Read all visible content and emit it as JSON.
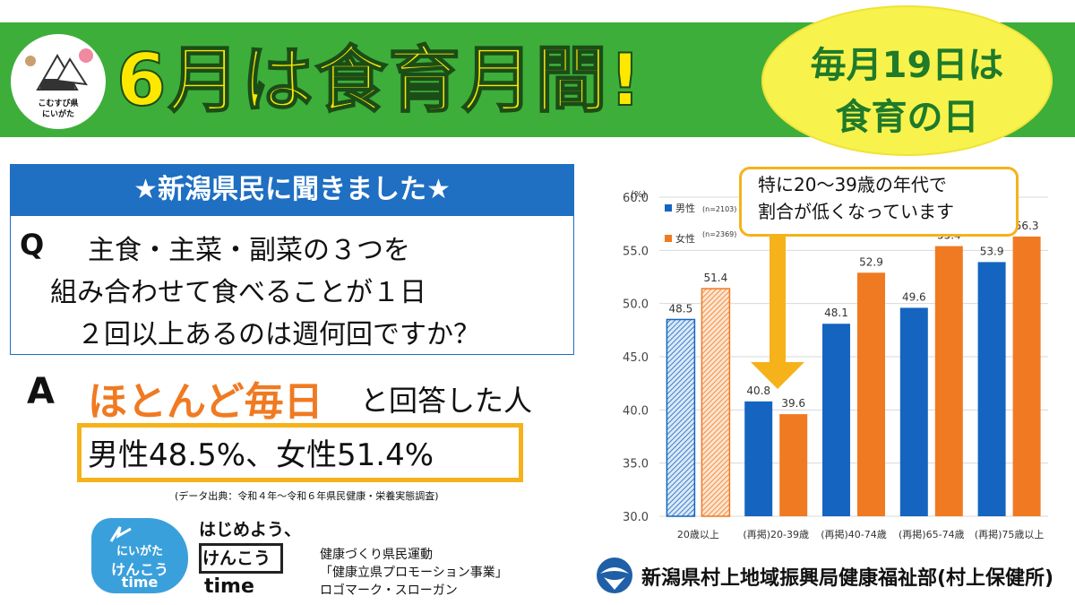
{
  "header": {
    "headline": "6月は食育月間!",
    "badge_line1": "毎月19日は",
    "badge_line2": "食育の日",
    "logo_text_line1": "こむすび県",
    "logo_text_line2": "にいがた"
  },
  "survey": {
    "title": "★新潟県民に聞きました★",
    "q_marker": "Q",
    "question_lines": [
      "主食・主菜・副菜の３つを",
      "組み合わせて食べることが１日",
      "２回以上あるのは週何回ですか？"
    ],
    "a_marker": "A",
    "answer_highlight": "ほとんど毎日",
    "answer_rest": "と回答した人",
    "result": "男性48.5%、女性51.4%",
    "source": "(データ出典：令和４年～令和６年県民健康・栄養実態調査)"
  },
  "logos": {
    "kenko_line1": "にいがた",
    "kenko_line2": "けんこう",
    "kenko_line3": "time",
    "slogan_line1": "はじめよう、",
    "slogan_line2": "けんこう",
    "slogan_line3": "time",
    "caption_line1": "健康づくり県民運動",
    "caption_line2": "「健康立県プロモーション事業」",
    "caption_line3": "ロゴマーク・スローガン"
  },
  "callout": {
    "line1": "特に20～39歳の年代で",
    "line2": "割合が低くなっています"
  },
  "footer": {
    "organization": "新潟県村上地域振興局健康福祉部(村上保健所)"
  },
  "colors": {
    "header_green": "#3dae3a",
    "headline_yellow": "#ffe800",
    "survey_blue": "#1f6fc2",
    "male_blue": "#1565c0",
    "female_orange": "#f07a22",
    "highlight_gold": "#f5b21a"
  },
  "chart_data": {
    "type": "bar",
    "unit_label": "(%)",
    "categories": [
      "20歳以上",
      "(再掲)20-39歳",
      "(再掲)40-74歳",
      "(再掲)65-74歳",
      "(再掲)75歳以上"
    ],
    "series": [
      {
        "name": "男性",
        "n": "(n=2103)",
        "values": [
          48.5,
          40.8,
          48.1,
          49.6,
          53.9
        ]
      },
      {
        "name": "女性",
        "n": "(n=2369)",
        "values": [
          51.4,
          39.6,
          52.9,
          55.4,
          56.3
        ]
      }
    ],
    "y_ticks": [
      "30.0",
      "35.0",
      "40.0",
      "45.0",
      "50.0",
      "55.0",
      "60.0"
    ],
    "ylim": [
      30,
      60
    ],
    "grid": true,
    "legend": "top-left",
    "first_group_hatched": true
  }
}
